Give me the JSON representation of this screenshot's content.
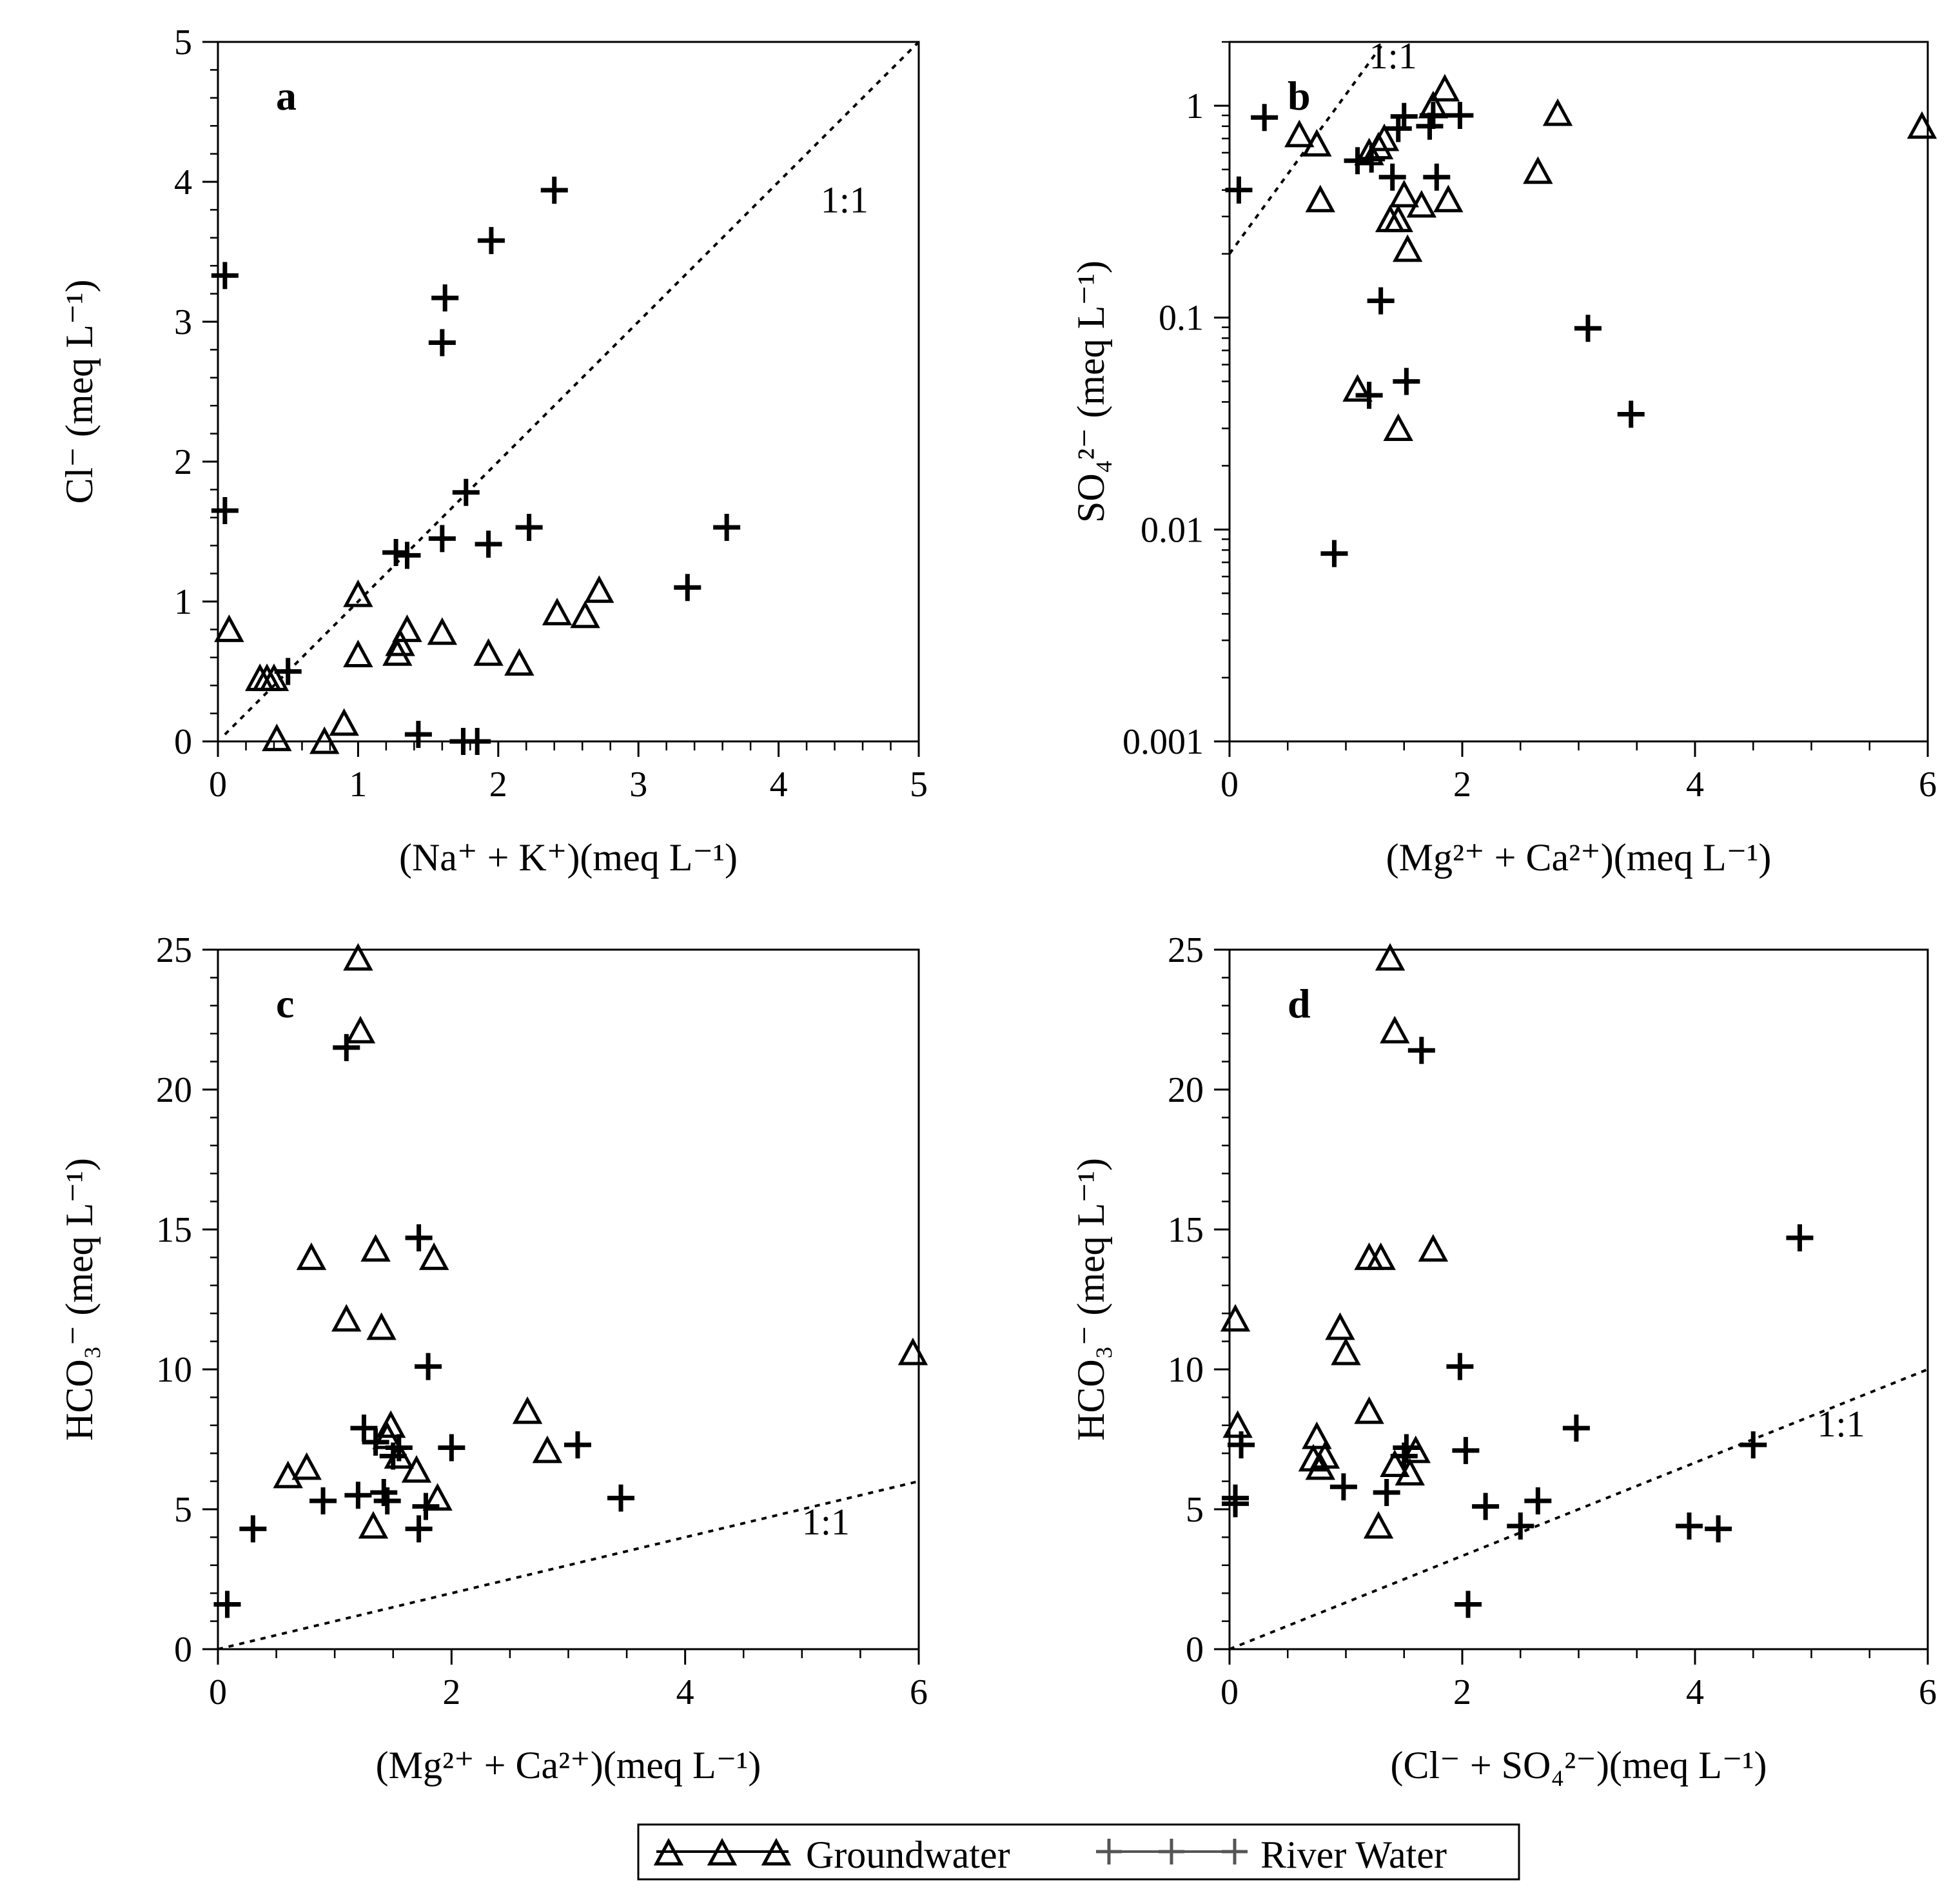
{
  "legend": {
    "groundwater_label": "Groundwater",
    "river_label": "River Water"
  },
  "chart_data": [
    {
      "type": "scatter",
      "panel_letter": "a",
      "xlabel": "(Na⁺ + K⁺)(meq L⁻¹)",
      "ylabel": "Cl⁻ (meq L⁻¹)",
      "xlim": [
        0,
        5
      ],
      "ylim": [
        0,
        5
      ],
      "yscale": "linear",
      "xticks": [
        0,
        1,
        2,
        3,
        4,
        5
      ],
      "xtick_labels": [
        "0",
        "1",
        "2",
        "3",
        "4",
        "5"
      ],
      "yticks": [
        0,
        1,
        2,
        3,
        4,
        5
      ],
      "ytick_labels": [
        "0",
        "1",
        "2",
        "3",
        "4",
        "5"
      ],
      "ref_line": {
        "label": "1:1",
        "slope": 1,
        "from": [
          0.05,
          0.05
        ],
        "to": [
          5,
          5
        ],
        "label_at": [
          4.3,
          3.78
        ]
      },
      "series": [
        {
          "name": "Groundwater",
          "marker": "triangle",
          "points": [
            [
              0.08,
              0.8
            ],
            [
              0.3,
              0.45
            ],
            [
              0.35,
              0.45
            ],
            [
              0.4,
              0.45
            ],
            [
              0.42,
              0.02
            ],
            [
              0.76,
              0.0
            ],
            [
              0.9,
              0.13
            ],
            [
              1.0,
              1.05
            ],
            [
              1.0,
              0.62
            ],
            [
              1.28,
              0.63
            ],
            [
              1.3,
              0.7
            ],
            [
              1.35,
              0.8
            ],
            [
              1.6,
              0.78
            ],
            [
              1.93,
              0.63
            ],
            [
              2.15,
              0.56
            ],
            [
              2.42,
              0.92
            ],
            [
              2.62,
              0.9
            ],
            [
              2.72,
              1.08
            ]
          ]
        },
        {
          "name": "River Water",
          "marker": "cross",
          "points": [
            [
              0.05,
              3.33
            ],
            [
              0.05,
              1.65
            ],
            [
              0.5,
              0.5
            ],
            [
              1.27,
              1.35
            ],
            [
              1.35,
              1.33
            ],
            [
              1.6,
              1.45
            ],
            [
              1.6,
              2.85
            ],
            [
              1.62,
              3.17
            ],
            [
              1.77,
              1.78
            ],
            [
              1.93,
              1.41
            ],
            [
              1.95,
              3.58
            ],
            [
              2.22,
              1.53
            ],
            [
              2.4,
              3.94
            ],
            [
              3.35,
              1.1
            ],
            [
              3.63,
              1.53
            ],
            [
              1.43,
              0.05
            ],
            [
              1.75,
              0.0
            ],
            [
              1.85,
              0.0
            ]
          ]
        }
      ]
    },
    {
      "type": "scatter",
      "panel_letter": "b",
      "xlabel": "(Mg²⁺ + Ca²⁺)(meq L⁻¹)",
      "ylabel": "SO₄²⁻ (meq L⁻¹)",
      "xlim": [
        0,
        6
      ],
      "ylim": [
        0.001,
        2
      ],
      "yscale": "log",
      "xticks": [
        0,
        2,
        4,
        6
      ],
      "xtick_labels": [
        "0",
        "2",
        "4",
        "6"
      ],
      "yticks": [
        0.001,
        0.01,
        0.1,
        1
      ],
      "ytick_labels": [
        "0.001",
        "0.01",
        "0.1",
        "1"
      ],
      "ref_line": {
        "label": "1:1",
        "slope": 1,
        "from": [
          0,
          0.2
        ],
        "to": [
          1.33,
          2
        ],
        "label_at": [
          1.2,
          1.5
        ]
      },
      "series": [
        {
          "name": "Groundwater",
          "marker": "triangle",
          "points": [
            [
              0.6,
              0.73
            ],
            [
              0.75,
              0.66
            ],
            [
              0.78,
              0.36
            ],
            [
              1.1,
              0.046
            ],
            [
              1.2,
              0.6
            ],
            [
              1.28,
              0.64
            ],
            [
              1.33,
              0.7
            ],
            [
              1.38,
              0.29
            ],
            [
              1.45,
              0.29
            ],
            [
              1.45,
              0.03
            ],
            [
              1.5,
              0.38
            ],
            [
              1.53,
              0.21
            ],
            [
              1.65,
              0.34
            ],
            [
              1.75,
              1.0
            ],
            [
              1.85,
              1.2
            ],
            [
              1.88,
              0.36
            ],
            [
              2.65,
              0.49
            ],
            [
              2.82,
              0.92
            ],
            [
              5.95,
              0.8
            ]
          ]
        },
        {
          "name": "River Water",
          "marker": "cross",
          "points": [
            [
              0.08,
              0.4
            ],
            [
              0.3,
              0.88
            ],
            [
              0.9,
              0.0077
            ],
            [
              1.1,
              0.55
            ],
            [
              1.22,
              0.56
            ],
            [
              1.2,
              0.043
            ],
            [
              1.3,
              0.12
            ],
            [
              1.4,
              0.46
            ],
            [
              1.45,
              0.78
            ],
            [
              1.5,
              0.89
            ],
            [
              1.52,
              0.05
            ],
            [
              1.72,
              0.8
            ],
            [
              1.75,
              0.9
            ],
            [
              1.78,
              0.46
            ],
            [
              1.98,
              0.9
            ],
            [
              3.08,
              0.089
            ],
            [
              3.45,
              0.035
            ]
          ]
        }
      ]
    },
    {
      "type": "scatter",
      "panel_letter": "c",
      "xlabel": "(Mg²⁺ + Ca²⁺)(meq L⁻¹)",
      "ylabel": "HCO₃⁻ (meq L⁻¹)",
      "xlim": [
        0,
        6
      ],
      "ylim": [
        0,
        25
      ],
      "yscale": "linear",
      "xticks": [
        0,
        2,
        4,
        6
      ],
      "xtick_labels": [
        "0",
        "2",
        "4",
        "6"
      ],
      "yticks": [
        0,
        5,
        10,
        15,
        20,
        25
      ],
      "ytick_labels": [
        "0",
        "5",
        "10",
        "15",
        "20",
        "25"
      ],
      "ref_line": {
        "label": "1:1",
        "slope": 1,
        "from": [
          0,
          0
        ],
        "to": [
          6,
          6
        ],
        "label_at": [
          5.0,
          4.1
        ]
      },
      "series": [
        {
          "name": "Groundwater",
          "marker": "triangle",
          "points": [
            [
              0.6,
              6.2
            ],
            [
              0.76,
              6.5
            ],
            [
              0.8,
              14.0
            ],
            [
              1.1,
              11.8
            ],
            [
              1.2,
              24.7
            ],
            [
              1.22,
              22.1
            ],
            [
              1.33,
              4.4
            ],
            [
              1.35,
              14.3
            ],
            [
              1.4,
              11.5
            ],
            [
              1.45,
              7.6
            ],
            [
              1.48,
              8.0
            ],
            [
              1.55,
              6.9
            ],
            [
              1.7,
              6.4
            ],
            [
              1.85,
              14.0
            ],
            [
              1.88,
              5.4
            ],
            [
              2.65,
              8.5
            ],
            [
              2.82,
              7.1
            ],
            [
              5.95,
              10.6
            ]
          ]
        },
        {
          "name": "River Water",
          "marker": "cross",
          "points": [
            [
              0.08,
              1.6
            ],
            [
              0.3,
              4.3
            ],
            [
              0.9,
              5.3
            ],
            [
              1.1,
              21.5
            ],
            [
              1.2,
              5.5
            ],
            [
              1.25,
              7.9
            ],
            [
              1.35,
              7.4
            ],
            [
              1.42,
              5.6
            ],
            [
              1.45,
              5.3
            ],
            [
              1.5,
              6.9
            ],
            [
              1.55,
              7.2
            ],
            [
              1.72,
              14.7
            ],
            [
              1.72,
              4.3
            ],
            [
              1.8,
              10.1
            ],
            [
              1.78,
              5.1
            ],
            [
              2.0,
              7.2
            ],
            [
              3.08,
              7.3
            ],
            [
              3.45,
              5.4
            ]
          ]
        }
      ]
    },
    {
      "type": "scatter",
      "panel_letter": "d",
      "xlabel": "(Cl⁻ + SO₄²⁻)(meq L⁻¹)",
      "ylabel": "HCO₃⁻ (meq L⁻¹)",
      "xlim": [
        0,
        6
      ],
      "ylim": [
        0,
        25
      ],
      "yscale": "linear",
      "xticks": [
        0,
        2,
        4,
        6
      ],
      "xtick_labels": [
        "0",
        "2",
        "4",
        "6"
      ],
      "yticks": [
        0,
        5,
        10,
        15,
        20,
        25
      ],
      "ytick_labels": [
        "0",
        "5",
        "10",
        "15",
        "20",
        "25"
      ],
      "ref_line": {
        "label": "1:1",
        "slope": 1,
        "from": [
          0,
          0
        ],
        "to": [
          6,
          10
        ],
        "label_at": [
          5.05,
          7.6
        ]
      },
      "series": [
        {
          "name": "Groundwater",
          "marker": "triangle",
          "points": [
            [
              0.05,
              11.8
            ],
            [
              0.07,
              8.0
            ],
            [
              0.72,
              6.8
            ],
            [
              0.75,
              7.6
            ],
            [
              0.78,
              6.5
            ],
            [
              0.82,
              6.9
            ],
            [
              0.95,
              11.5
            ],
            [
              1.0,
              10.6
            ],
            [
              1.2,
              8.5
            ],
            [
              1.2,
              14.0
            ],
            [
              1.28,
              4.4
            ],
            [
              1.3,
              14.0
            ],
            [
              1.38,
              24.7
            ],
            [
              1.42,
              6.6
            ],
            [
              1.42,
              22.1
            ],
            [
              1.55,
              6.3
            ],
            [
              1.6,
              7.1
            ],
            [
              1.75,
              14.3
            ]
          ]
        },
        {
          "name": "River Water",
          "marker": "cross",
          "points": [
            [
              0.05,
              5.2
            ],
            [
              0.05,
              5.4
            ],
            [
              0.1,
              7.3
            ],
            [
              0.98,
              5.8
            ],
            [
              1.35,
              5.6
            ],
            [
              1.5,
              6.9
            ],
            [
              1.52,
              7.2
            ],
            [
              1.65,
              21.4
            ],
            [
              1.98,
              10.1
            ],
            [
              2.03,
              7.1
            ],
            [
              2.05,
              1.6
            ],
            [
              2.2,
              5.1
            ],
            [
              2.5,
              4.4
            ],
            [
              2.65,
              5.3
            ],
            [
              2.98,
              7.9
            ],
            [
              3.95,
              4.4
            ],
            [
              4.2,
              4.3
            ],
            [
              4.5,
              7.3
            ],
            [
              4.9,
              14.7
            ]
          ]
        }
      ]
    }
  ]
}
